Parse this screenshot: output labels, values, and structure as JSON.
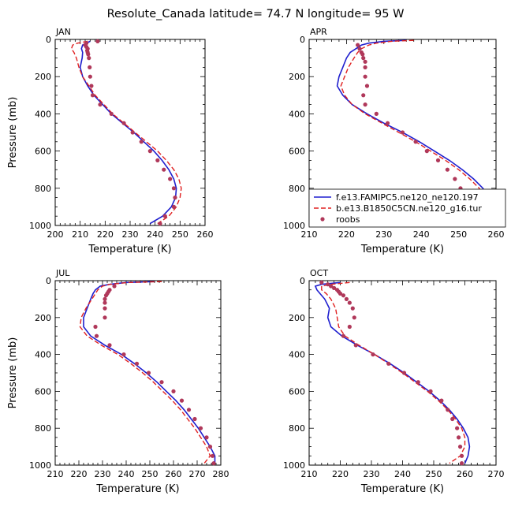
{
  "title": "Resolute_Canada   latitude= 74.7 N longitude= 95 W",
  "colors": {
    "model1": "#1f1fcf",
    "model2": "#e02020",
    "obs": "#b0385a"
  },
  "chart_data": [
    {
      "type": "line",
      "panel": "JAN",
      "xlabel": "Temperature (K)",
      "ylabel": "Pressure (mb)",
      "xlim": [
        200,
        260
      ],
      "ylim": [
        1000,
        0
      ],
      "xticks": [
        200,
        210,
        220,
        230,
        240,
        250,
        260
      ],
      "yticks": [
        0,
        200,
        400,
        600,
        800,
        1000
      ],
      "series": [
        {
          "p": [
            10,
            30,
            50,
            70,
            100,
            150,
            200,
            250,
            300,
            350,
            400,
            450,
            500,
            550,
            600,
            650,
            700,
            750,
            800,
            850,
            900,
            950,
            990
          ],
          "t": [
            214,
            211,
            210.5,
            211,
            210.8,
            210,
            211,
            213,
            215.5,
            219,
            222.5,
            227,
            231.5,
            235.5,
            239.5,
            242.8,
            245.5,
            247.5,
            248.5,
            248.2,
            246.5,
            243,
            238
          ]
        },
        {
          "p": [
            10,
            20,
            30,
            50,
            70,
            100,
            150,
            200,
            250,
            300,
            350,
            400,
            450,
            500,
            550,
            600,
            650,
            700,
            750,
            800,
            850,
            900,
            950,
            990
          ],
          "t": [
            213,
            209,
            207,
            206.5,
            207.5,
            208.5,
            209.5,
            211,
            213.5,
            216,
            219.5,
            223,
            227.5,
            232,
            236.5,
            241,
            244.5,
            247.5,
            249.5,
            250.5,
            250,
            248.5,
            245.5,
            241
          ]
        },
        {
          "p": [
            10,
            20,
            30,
            40,
            50,
            60,
            70,
            80,
            100,
            150,
            200,
            250,
            300,
            350,
            400,
            450,
            500,
            550,
            600,
            650,
            700,
            750,
            800,
            850,
            900,
            950,
            990
          ],
          "t": [
            217,
            212.5,
            212,
            212.5,
            213,
            212.8,
            213,
            213.2,
            213.5,
            213.8,
            214,
            214.5,
            215,
            218,
            222.5,
            227.5,
            231,
            234.5,
            238,
            241,
            243.5,
            246,
            247.5,
            248,
            247.5,
            244,
            242
          ]
        }
      ]
    },
    {
      "type": "line",
      "panel": "APR",
      "xlabel": "Temperature (K)",
      "ylabel": "",
      "xlim": [
        210,
        260
      ],
      "ylim": [
        1000,
        0
      ],
      "xticks": [
        210,
        220,
        230,
        240,
        250,
        260
      ],
      "yticks": [
        0,
        200,
        400,
        600,
        800,
        1000
      ],
      "legend": {
        "placement": "lower-right",
        "entries": [
          "f.e13.FAMIPC5.ne120_ne120.197",
          "b.e13.B1850C5CN.ne120_g16.tur",
          "roobs"
        ]
      },
      "series": [
        {
          "p": [
            5,
            10,
            20,
            30,
            50,
            70,
            100,
            150,
            200,
            250,
            300,
            350,
            400,
            450,
            500,
            550,
            600,
            650,
            700,
            750,
            800,
            850,
            900,
            950,
            990
          ],
          "t": [
            236,
            230,
            226,
            224,
            222.5,
            221,
            220,
            219,
            218,
            217.5,
            219,
            221.5,
            225.5,
            230,
            235,
            239.5,
            243.5,
            247.5,
            251,
            254,
            256.5,
            257.8,
            257.5,
            255.5,
            252.5
          ]
        },
        {
          "p": [
            5,
            10,
            20,
            30,
            50,
            70,
            100,
            150,
            200,
            250,
            300,
            350,
            400,
            450,
            500,
            550,
            600,
            650,
            700,
            750,
            800,
            850,
            900,
            950,
            990
          ],
          "t": [
            238,
            232,
            228,
            226,
            224,
            223,
            222,
            220.5,
            219.5,
            218.5,
            219.5,
            221.5,
            225,
            229.5,
            234,
            238.5,
            242.5,
            246.5,
            250,
            253,
            255.5,
            257,
            256.5,
            254,
            250
          ]
        },
        {
          "p": [
            30,
            50,
            70,
            80,
            100,
            120,
            150,
            200,
            250,
            300,
            350,
            400,
            450,
            500,
            550,
            600,
            650,
            700,
            750,
            800,
            850,
            900,
            950,
            990
          ],
          "t": [
            223,
            223.5,
            224,
            224.3,
            224.5,
            225,
            225,
            225,
            225.5,
            224.5,
            225,
            228,
            231,
            235,
            238.5,
            241.5,
            244.5,
            247,
            249,
            250.5,
            251.5,
            251.5,
            251,
            249.5
          ]
        }
      ]
    },
    {
      "type": "line",
      "panel": "JUL",
      "xlabel": "Temperature (K)",
      "ylabel": "Pressure (mb)",
      "xlim": [
        210,
        280
      ],
      "ylim": [
        1000,
        0
      ],
      "xticks": [
        210,
        220,
        230,
        240,
        250,
        260,
        270,
        280
      ],
      "yticks": [
        0,
        200,
        400,
        600,
        800,
        1000
      ],
      "series": [
        {
          "p": [
            5,
            10,
            20,
            30,
            50,
            70,
            100,
            150,
            200,
            250,
            300,
            350,
            400,
            450,
            500,
            550,
            600,
            650,
            700,
            750,
            800,
            850,
            900,
            950,
            990
          ],
          "t": [
            252,
            240,
            233,
            229,
            227,
            226,
            225,
            223.5,
            222,
            222,
            225,
            231,
            238,
            243.5,
            248.5,
            253,
            257,
            261,
            264.5,
            267.5,
            270.5,
            273,
            275.5,
            277.5,
            277.5
          ]
        },
        {
          "p": [
            5,
            10,
            20,
            30,
            50,
            70,
            100,
            150,
            200,
            250,
            300,
            350,
            400,
            450,
            500,
            550,
            600,
            650,
            700,
            750,
            800,
            850,
            900,
            950,
            990
          ],
          "t": [
            255,
            241,
            233,
            230,
            228,
            227,
            225.5,
            223,
            221,
            220.5,
            223.5,
            229.5,
            236.5,
            242,
            247,
            251.5,
            255.5,
            259.5,
            263,
            266,
            269,
            271.5,
            274,
            275.5,
            273
          ]
        },
        {
          "p": [
            30,
            50,
            60,
            70,
            80,
            100,
            120,
            150,
            200,
            250,
            300,
            350,
            400,
            450,
            500,
            550,
            600,
            650,
            700,
            750,
            800,
            850,
            900,
            950,
            990
          ],
          "t": [
            235,
            233,
            232.5,
            232,
            231.5,
            231,
            231,
            231,
            231,
            227,
            227.5,
            233,
            239,
            244.5,
            249.5,
            255,
            260,
            263.5,
            266.5,
            269,
            271.5,
            274,
            275.5,
            276.5,
            277
          ]
        }
      ]
    },
    {
      "type": "line",
      "panel": "OCT",
      "xlabel": "Temperature (K)",
      "ylabel": "",
      "xlim": [
        210,
        270
      ],
      "ylim": [
        1000,
        0
      ],
      "xticks": [
        210,
        220,
        230,
        240,
        250,
        260,
        270
      ],
      "yticks": [
        0,
        200,
        400,
        600,
        800,
        1000
      ],
      "series": [
        {
          "p": [
            10,
            20,
            30,
            50,
            70,
            100,
            150,
            200,
            250,
            300,
            350,
            400,
            450,
            500,
            550,
            600,
            650,
            700,
            750,
            800,
            850,
            900,
            950,
            990
          ],
          "t": [
            220,
            214,
            212,
            212.5,
            213.5,
            215,
            216.5,
            216,
            217,
            220.5,
            225.5,
            231,
            236,
            240.5,
            244.5,
            248.5,
            252,
            255,
            257.5,
            259.5,
            261,
            261.5,
            261,
            260
          ]
        },
        {
          "p": [
            10,
            20,
            30,
            50,
            70,
            100,
            150,
            200,
            250,
            300,
            350,
            400,
            450,
            500,
            550,
            600,
            650,
            700,
            750,
            800,
            850,
            900,
            950,
            990
          ],
          "t": [
            223,
            217,
            214,
            214,
            215.5,
            217,
            218.5,
            219,
            219.5,
            221.5,
            226,
            231,
            235.5,
            240,
            244,
            248,
            251.5,
            254.5,
            257,
            259,
            260,
            260,
            258.5,
            255
          ]
        },
        {
          "p": [
            10,
            20,
            30,
            40,
            50,
            60,
            70,
            80,
            100,
            120,
            150,
            200,
            250,
            300,
            350,
            400,
            450,
            500,
            550,
            600,
            650,
            700,
            750,
            800,
            850,
            900,
            950,
            990
          ],
          "t": [
            214,
            216,
            217,
            218,
            219,
            219.5,
            220,
            221,
            222,
            223,
            224,
            224.5,
            223,
            221,
            225,
            230.5,
            235.5,
            240.5,
            245,
            249,
            252.5,
            254.5,
            256,
            257.5,
            258,
            258.5,
            259,
            259
          ]
        }
      ]
    }
  ]
}
